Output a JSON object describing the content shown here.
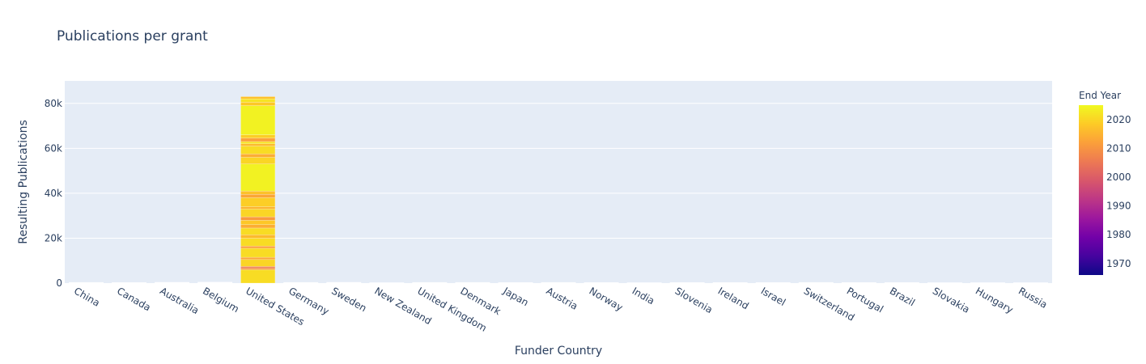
{
  "chart_data": {
    "type": "bar",
    "stacked": true,
    "title": "Publications per grant",
    "xlabel": "Funder Country",
    "ylabel": "Resulting Publications",
    "ylim": [
      0,
      90000
    ],
    "yticks": [
      0,
      20000,
      40000,
      60000,
      80000
    ],
    "ytick_labels": [
      "0",
      "20k",
      "40k",
      "60k",
      "80k"
    ],
    "categories": [
      "China",
      "Canada",
      "Australia",
      "Belgium",
      "United States",
      "Germany",
      "Sweden",
      "New Zealand",
      "United Kingdom",
      "Denmark",
      "Japan",
      "Austria",
      "Norway",
      "India",
      "Slovenia",
      "Ireland",
      "Israel",
      "Switzerland",
      "Portugal",
      "Brazil",
      "Slovakia",
      "Hungary",
      "Russia"
    ],
    "totals": [
      300,
      250,
      350,
      400,
      83000,
      300,
      350,
      200,
      300,
      300,
      250,
      300,
      250,
      200,
      250,
      250,
      250,
      300,
      250,
      250,
      200,
      200,
      200
    ],
    "color_scale": {
      "title": "End Year",
      "cmin": 1966,
      "cmax": 2025,
      "ticks": [
        1970,
        1980,
        1990,
        2000,
        2010,
        2020
      ],
      "colors": [
        "#0d0887",
        "#46039f",
        "#7201a8",
        "#9c179e",
        "#bd3786",
        "#d8576b",
        "#ed7953",
        "#fb9f3a",
        "#fdca26",
        "#f0f921"
      ]
    },
    "us_segments": [
      {
        "from": 0,
        "to": 6000,
        "year": 2021
      },
      {
        "from": 6000,
        "to": 6800,
        "year": 2009
      },
      {
        "from": 6800,
        "to": 7400,
        "year": 2005
      },
      {
        "from": 7400,
        "to": 10500,
        "year": 2020
      },
      {
        "from": 10500,
        "to": 11500,
        "year": 2013
      },
      {
        "from": 11500,
        "to": 15500,
        "year": 2021
      },
      {
        "from": 15500,
        "to": 16500,
        "year": 2012
      },
      {
        "from": 16500,
        "to": 20000,
        "year": 2021
      },
      {
        "from": 20000,
        "to": 21500,
        "year": 2016
      },
      {
        "from": 21500,
        "to": 24500,
        "year": 2021
      },
      {
        "from": 24500,
        "to": 26000,
        "year": 2014
      },
      {
        "from": 26000,
        "to": 28000,
        "year": 2018
      },
      {
        "from": 28000,
        "to": 29500,
        "year": 2011
      },
      {
        "from": 29500,
        "to": 33000,
        "year": 2020
      },
      {
        "from": 33000,
        "to": 34000,
        "year": 2015
      },
      {
        "from": 34000,
        "to": 38000,
        "year": 2019
      },
      {
        "from": 38000,
        "to": 39500,
        "year": 2013
      },
      {
        "from": 39500,
        "to": 41000,
        "year": 2017
      },
      {
        "from": 41000,
        "to": 53000,
        "year": 2024
      },
      {
        "from": 53000,
        "to": 56000,
        "year": 2020
      },
      {
        "from": 56000,
        "to": 57500,
        "year": 2014
      },
      {
        "from": 57500,
        "to": 61000,
        "year": 2021
      },
      {
        "from": 61000,
        "to": 62000,
        "year": 2016
      },
      {
        "from": 62000,
        "to": 63000,
        "year": 2022
      },
      {
        "from": 63000,
        "to": 64500,
        "year": 2012
      },
      {
        "from": 64500,
        "to": 66000,
        "year": 2019
      },
      {
        "from": 66000,
        "to": 79000,
        "year": 2024
      },
      {
        "from": 79000,
        "to": 80500,
        "year": 2018
      },
      {
        "from": 80500,
        "to": 82000,
        "year": 2022
      },
      {
        "from": 82000,
        "to": 83000,
        "year": 2017
      }
    ]
  }
}
